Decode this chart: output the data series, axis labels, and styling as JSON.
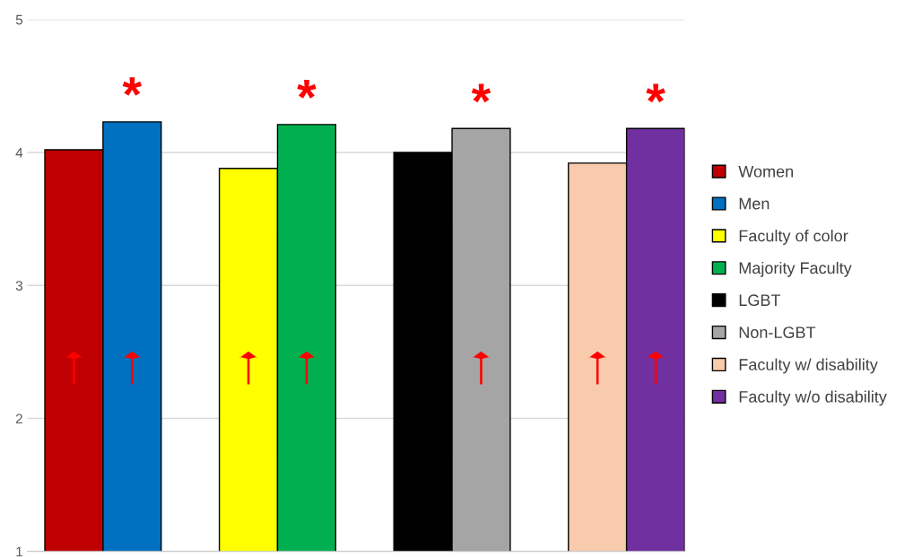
{
  "chart_data": {
    "type": "bar",
    "categories": [
      null,
      null,
      null,
      null,
      null,
      null,
      null,
      null,
      null,
      null,
      null
    ],
    "ylim": [
      1,
      5
    ],
    "yticks": [
      1,
      2,
      3,
      4,
      5
    ],
    "grid": "y",
    "legend": "right",
    "series": [
      {
        "name": "Women",
        "color": "#c00000",
        "values": [
          4.02,
          null,
          null,
          null,
          null,
          null,
          null,
          null,
          null,
          null,
          null
        ]
      },
      {
        "name": "Men",
        "color": "#0070c0",
        "values": [
          null,
          4.23,
          null,
          null,
          null,
          null,
          null,
          null,
          null,
          null,
          null
        ],
        "value_labels": [
          null,
          "*",
          null,
          null,
          null,
          null,
          null,
          null,
          null,
          null,
          null
        ]
      },
      {
        "name": "Faculty of color",
        "color": "#ffff00",
        "values": [
          null,
          null,
          null,
          3.88,
          null,
          null,
          null,
          null,
          null,
          null,
          null
        ]
      },
      {
        "name": "Majority Faculty",
        "color": "#00b050",
        "values": [
          null,
          null,
          null,
          null,
          4.21,
          null,
          null,
          null,
          null,
          null,
          null
        ],
        "value_labels": [
          null,
          null,
          null,
          null,
          "*",
          null,
          null,
          null,
          null,
          null,
          null
        ]
      },
      {
        "name": "LGBT",
        "color": "#000000",
        "values": [
          null,
          null,
          null,
          null,
          null,
          null,
          4.0,
          null,
          null,
          null,
          null
        ]
      },
      {
        "name": "Non-LGBT",
        "color": "#a5a5a5",
        "values": [
          null,
          null,
          null,
          null,
          null,
          null,
          null,
          4.18,
          null,
          null,
          null
        ],
        "value_labels": [
          null,
          null,
          null,
          null,
          null,
          null,
          null,
          "*",
          null,
          null,
          null
        ]
      },
      {
        "name": "Faculty w/ disability",
        "color": "#f8cbad",
        "values": [
          null,
          null,
          null,
          null,
          null,
          null,
          null,
          null,
          null,
          3.92,
          null
        ]
      },
      {
        "name": "Faculty w/o disability",
        "color": "#7030a0",
        "values": [
          null,
          null,
          null,
          null,
          null,
          null,
          null,
          null,
          null,
          null,
          4.18
        ],
        "value_labels": [
          null,
          null,
          null,
          null,
          null,
          null,
          null,
          null,
          null,
          null,
          "*"
        ]
      },
      {
        "type": "scatter",
        "color": "#ff0000",
        "values": [
          2.38,
          2.38,
          null,
          2.38,
          2.38,
          null,
          null,
          2.38,
          null,
          2.38,
          2.38
        ]
      }
    ]
  }
}
